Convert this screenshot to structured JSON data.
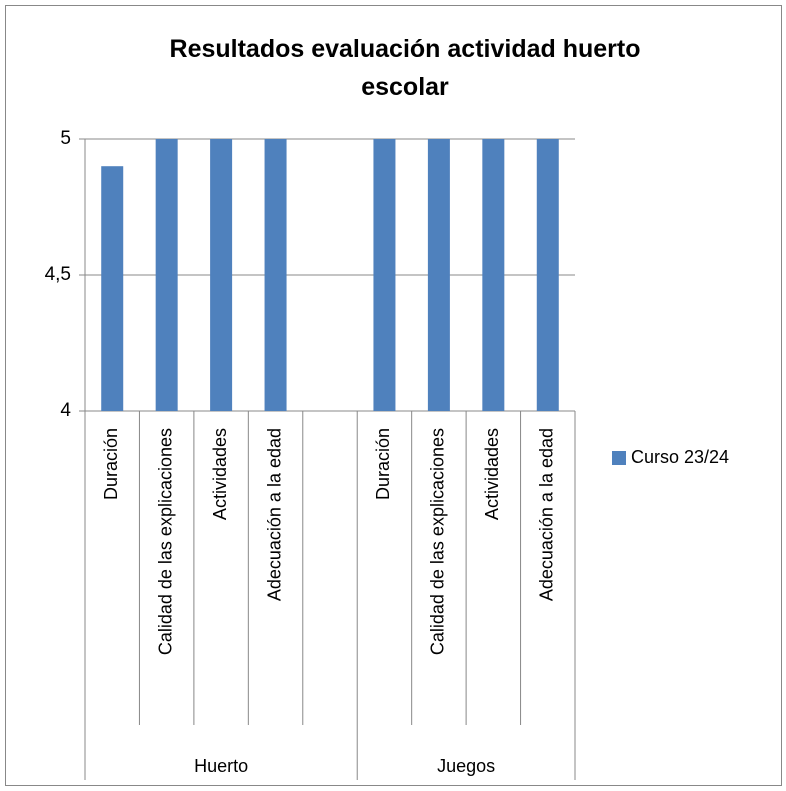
{
  "chart_data": {
    "type": "bar",
    "title": "Resultados evaluación actividad huerto escolar",
    "groups": [
      {
        "name": "Huerto",
        "categories": [
          "Duración",
          "Calidad de las explicaciones",
          "Actividades",
          "Adecuación a la edad",
          null
        ]
      },
      {
        "name": "Juegos",
        "categories": [
          "Duración",
          "Calidad de las explicaciones",
          "Actividades",
          "Adecuación a la edad"
        ]
      }
    ],
    "series": [
      {
        "name": "Curso 23/24",
        "color": "#4f81bd",
        "values": [
          4.9,
          5,
          5,
          5,
          null,
          5,
          5,
          5,
          5
        ]
      }
    ],
    "ylim": [
      4,
      5
    ],
    "yticks": [
      4,
      {
        "value": 4.5,
        "label": "4,5"
      },
      5
    ],
    "grid": true,
    "legend": "right"
  }
}
